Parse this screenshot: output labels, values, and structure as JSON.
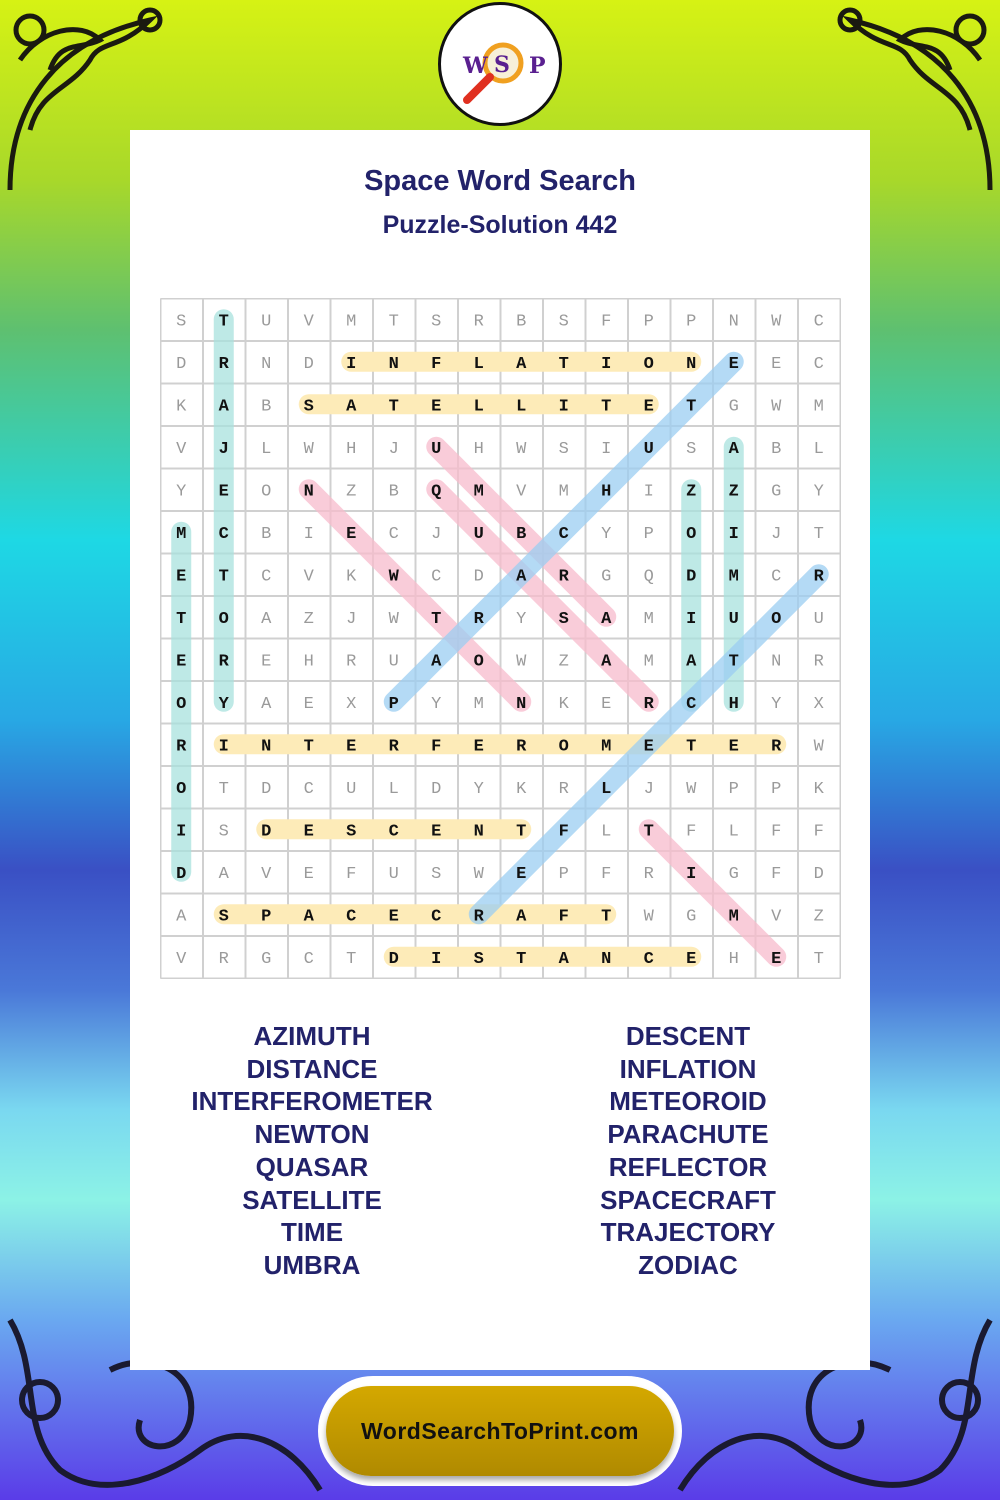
{
  "header": {
    "title": "Space Word Search",
    "subtitle": "Puzzle-Solution 442"
  },
  "logo": {
    "letters": [
      "W",
      "S",
      "P"
    ],
    "icon": "magnifier-icon"
  },
  "footer": {
    "site": "WordSearchToPrint.com"
  },
  "colors": {
    "title": "#22226a",
    "yellow": "#fdebb8",
    "teal": "#a9e2de",
    "pink": "#f8bccd",
    "blue": "#9ccef2",
    "pill": "#c49c00"
  },
  "grid": [
    "STUVMTSRBSFPPNWC",
    "DRNDINFLATIONEEC",
    "KABSATELLITETGWM",
    "VJLWHJUHWSIUSABL",
    "YEONZBQMVMHIZZGY",
    "MCBIECJUBCYPOIJT",
    "ETCVKWCDARGQDMCR",
    "TOAZJWTRYSAMIUOU",
    "EREHRUAOWZAMATNR",
    "OYAEXPYMNKERCHYX",
    "RINTERFEROMETERW",
    "OTDCULDYKRLJWPPK",
    "ISDESCENTFLTFLFF",
    "DAVEFUSWEPFRIGFD",
    "ASPACECRAFTWGMVZ",
    "VRGCTDISTANCEHET"
  ],
  "highlights": [
    {
      "word": "INFLATION",
      "from": [
        1,
        4
      ],
      "to": [
        1,
        12
      ],
      "color": "yellow"
    },
    {
      "word": "SATELLITE",
      "from": [
        2,
        3
      ],
      "to": [
        2,
        11
      ],
      "color": "yellow"
    },
    {
      "word": "INTERFEROMETER",
      "from": [
        10,
        1
      ],
      "to": [
        10,
        14
      ],
      "color": "yellow"
    },
    {
      "word": "DESCENT",
      "from": [
        12,
        2
      ],
      "to": [
        12,
        8
      ],
      "color": "yellow"
    },
    {
      "word": "SPACECRAFT",
      "from": [
        14,
        1
      ],
      "to": [
        14,
        10
      ],
      "color": "yellow"
    },
    {
      "word": "DISTANCE",
      "from": [
        15,
        5
      ],
      "to": [
        15,
        12
      ],
      "color": "yellow"
    },
    {
      "word": "TRAJECTORY",
      "from": [
        0,
        1
      ],
      "to": [
        9,
        1
      ],
      "color": "teal"
    },
    {
      "word": "METEOROID",
      "from": [
        5,
        0
      ],
      "to": [
        13,
        0
      ],
      "color": "teal"
    },
    {
      "word": "ZODIAC",
      "from": [
        4,
        12
      ],
      "to": [
        9,
        12
      ],
      "color": "teal"
    },
    {
      "word": "AZIMUTH",
      "from": [
        3,
        13
      ],
      "to": [
        9,
        13
      ],
      "color": "teal"
    },
    {
      "word": "NEWTON",
      "from": [
        4,
        3
      ],
      "to": [
        9,
        8
      ],
      "color": "pink"
    },
    {
      "word": "QUASAR",
      "from": [
        4,
        6
      ],
      "to": [
        9,
        11
      ],
      "color": "pink"
    },
    {
      "word": "UMBRA",
      "from": [
        3,
        6
      ],
      "to": [
        7,
        10
      ],
      "color": "pink"
    },
    {
      "word": "TIME",
      "from": [
        12,
        11
      ],
      "to": [
        15,
        14
      ],
      "color": "pink"
    },
    {
      "word": "PARACHUTE",
      "from": [
        9,
        5
      ],
      "to": [
        1,
        13
      ],
      "color": "blue"
    },
    {
      "word": "REFLECTOR",
      "from": [
        6,
        15
      ],
      "to": [
        14,
        7
      ],
      "color": "blue"
    }
  ],
  "word_list": {
    "left": [
      "AZIMUTH",
      "DISTANCE",
      "INTERFEROMETER",
      "NEWTON",
      "QUASAR",
      "SATELLITE",
      "TIME",
      "UMBRA"
    ],
    "right": [
      "DESCENT",
      "INFLATION",
      "METEOROID",
      "PARACHUTE",
      "REFLECTOR",
      "SPACECRAFT",
      "TRAJECTORY",
      "ZODIAC"
    ]
  }
}
